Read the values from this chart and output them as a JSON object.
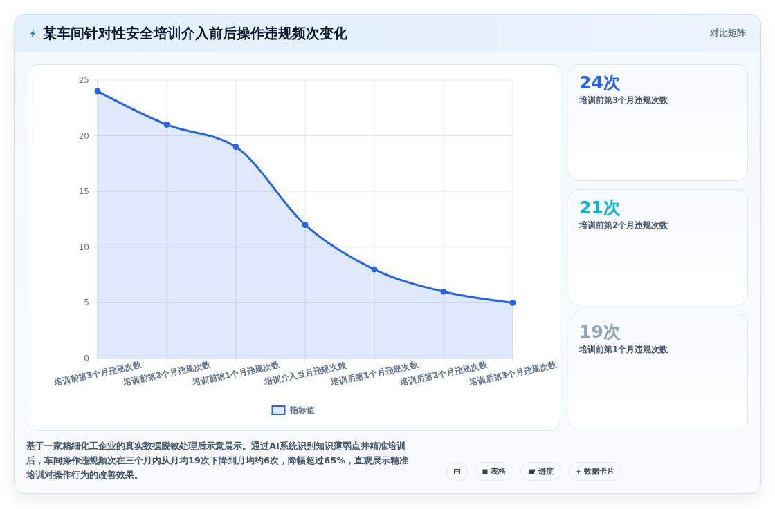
{
  "chart_data": [
    {
      "type": "area",
      "title": "某车间针对性安全培训介入前后操作违规频次变化",
      "categories": [
        "培训前第3个月违规次数",
        "培训前第2个月违规次数",
        "培训前第1个月违规次数",
        "培训介入当月违规次数",
        "培训后第1个月违规次数",
        "培训后第2个月违规次数",
        "培训后第3个月违规次数"
      ],
      "series": [
        {
          "name": "指标值",
          "color": "#2563eb",
          "values": [
            24,
            21,
            19,
            12,
            8,
            6,
            5
          ]
        }
      ],
      "ylim": [
        0,
        25
      ],
      "yticks": [
        0,
        5,
        10,
        15,
        20,
        25
      ],
      "grid": true,
      "legend": "bottom",
      "marker": "circle",
      "annotations": [
        "对比矩阵",
        "基于一家精细化工企业的真实数据脱敏处理后示意展示。通过AI系统识别知识薄弱点并精准培训后，车间操作违规频次在三个月内从月均19次下降到月均约6次，降幅超过65%，直观展示精准培训对操作行为的改善效果。",
        "表格",
        "进度",
        "数据卡片"
      ]
    },
    {
      "type": "other",
      "annotations": [
        "24次",
        "培训前第3个月违规次数",
        "21次",
        "培训前第2个月违规次数",
        "19次",
        "培训前第1个月违规次数"
      ]
    }
  ]
}
